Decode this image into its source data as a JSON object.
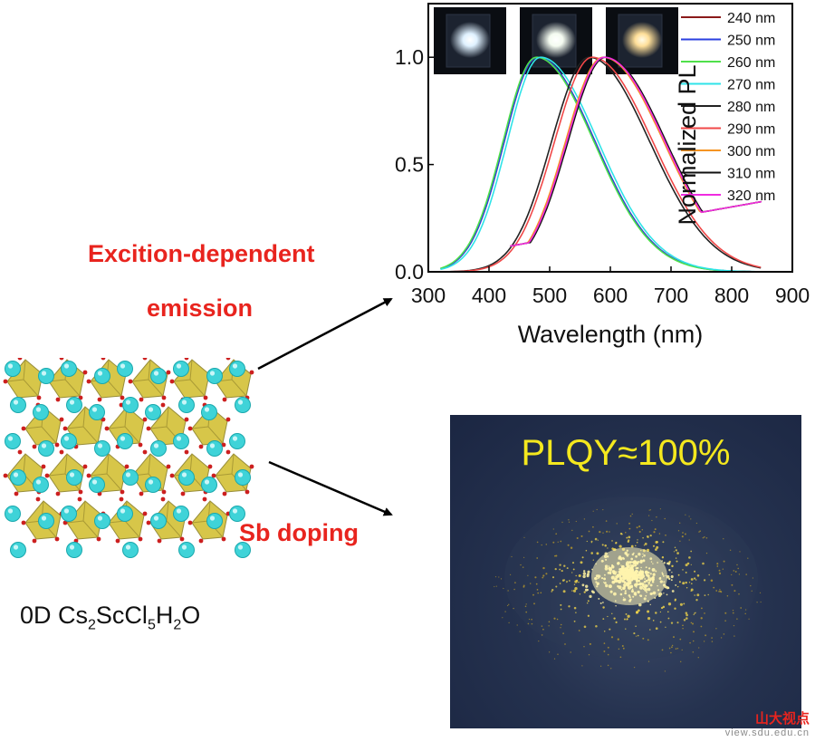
{
  "labels": {
    "excitation_line1": "Excition-dependent",
    "excitation_line2": "emission",
    "sb_doping": "Sb doping",
    "formula": {
      "p1": "0D Cs",
      "s1": "2",
      "p2": "ScCl",
      "s2": "5",
      "p3": "H",
      "s3": "2",
      "p4": "O"
    },
    "plqy": "PLQY≈100%"
  },
  "watermark": {
    "name": "山大视点",
    "url": "view.sdu.edu.cn"
  },
  "colors": {
    "label_red": "#e8241e",
    "plqy_yellow": "#f4e81e",
    "photo_bg": "#1f2b47",
    "crystal_yellow": "#d4c23a",
    "atom_cyan": "#3fd3d8",
    "atom_red": "#cc1f1f"
  },
  "chart_data": {
    "type": "line",
    "title": "",
    "xlabel": "Wavelength (nm)",
    "ylabel": "Normalized PL",
    "xlim": [
      300,
      900
    ],
    "ylim": [
      0,
      1.25
    ],
    "xticks": [
      "300",
      "400",
      "500",
      "600",
      "700",
      "800",
      "900"
    ],
    "yticks": [
      "0.0",
      "0.5",
      "1.0"
    ],
    "legend_position": "top-right",
    "series": [
      {
        "name": "240 nm",
        "color": "#8b1a1a",
        "peak": 480,
        "start": 320,
        "end": 850
      },
      {
        "name": "250 nm",
        "color": "#2b3fe0",
        "peak": 480,
        "start": 320,
        "end": 850
      },
      {
        "name": "260 nm",
        "color": "#4fe04a",
        "peak": 478,
        "start": 320,
        "end": 850
      },
      {
        "name": "270 nm",
        "color": "#2fe3e8",
        "peak": 485,
        "start": 320,
        "end": 850
      },
      {
        "name": "280 nm",
        "color": "#222222",
        "peak": 565,
        "start": 320,
        "end": 850
      },
      {
        "name": "290 nm",
        "color": "#f04848",
        "peak": 570,
        "start": 320,
        "end": 850
      },
      {
        "name": "300 nm",
        "color": "#f59422",
        "peak": 588,
        "start": 435,
        "end": 850
      },
      {
        "name": "310 nm",
        "color": "#111111",
        "peak": 592,
        "start": 435,
        "end": 850
      },
      {
        "name": "320 nm",
        "color": "#f02be0",
        "peak": 590,
        "start": 435,
        "end": 850
      }
    ],
    "insets": [
      {
        "name": "blue-white emission photo",
        "color": "#dff1ff"
      },
      {
        "name": "white emission photo",
        "color": "#f4fbf0"
      },
      {
        "name": "warm emission photo",
        "color": "#ffdf99"
      }
    ]
  }
}
